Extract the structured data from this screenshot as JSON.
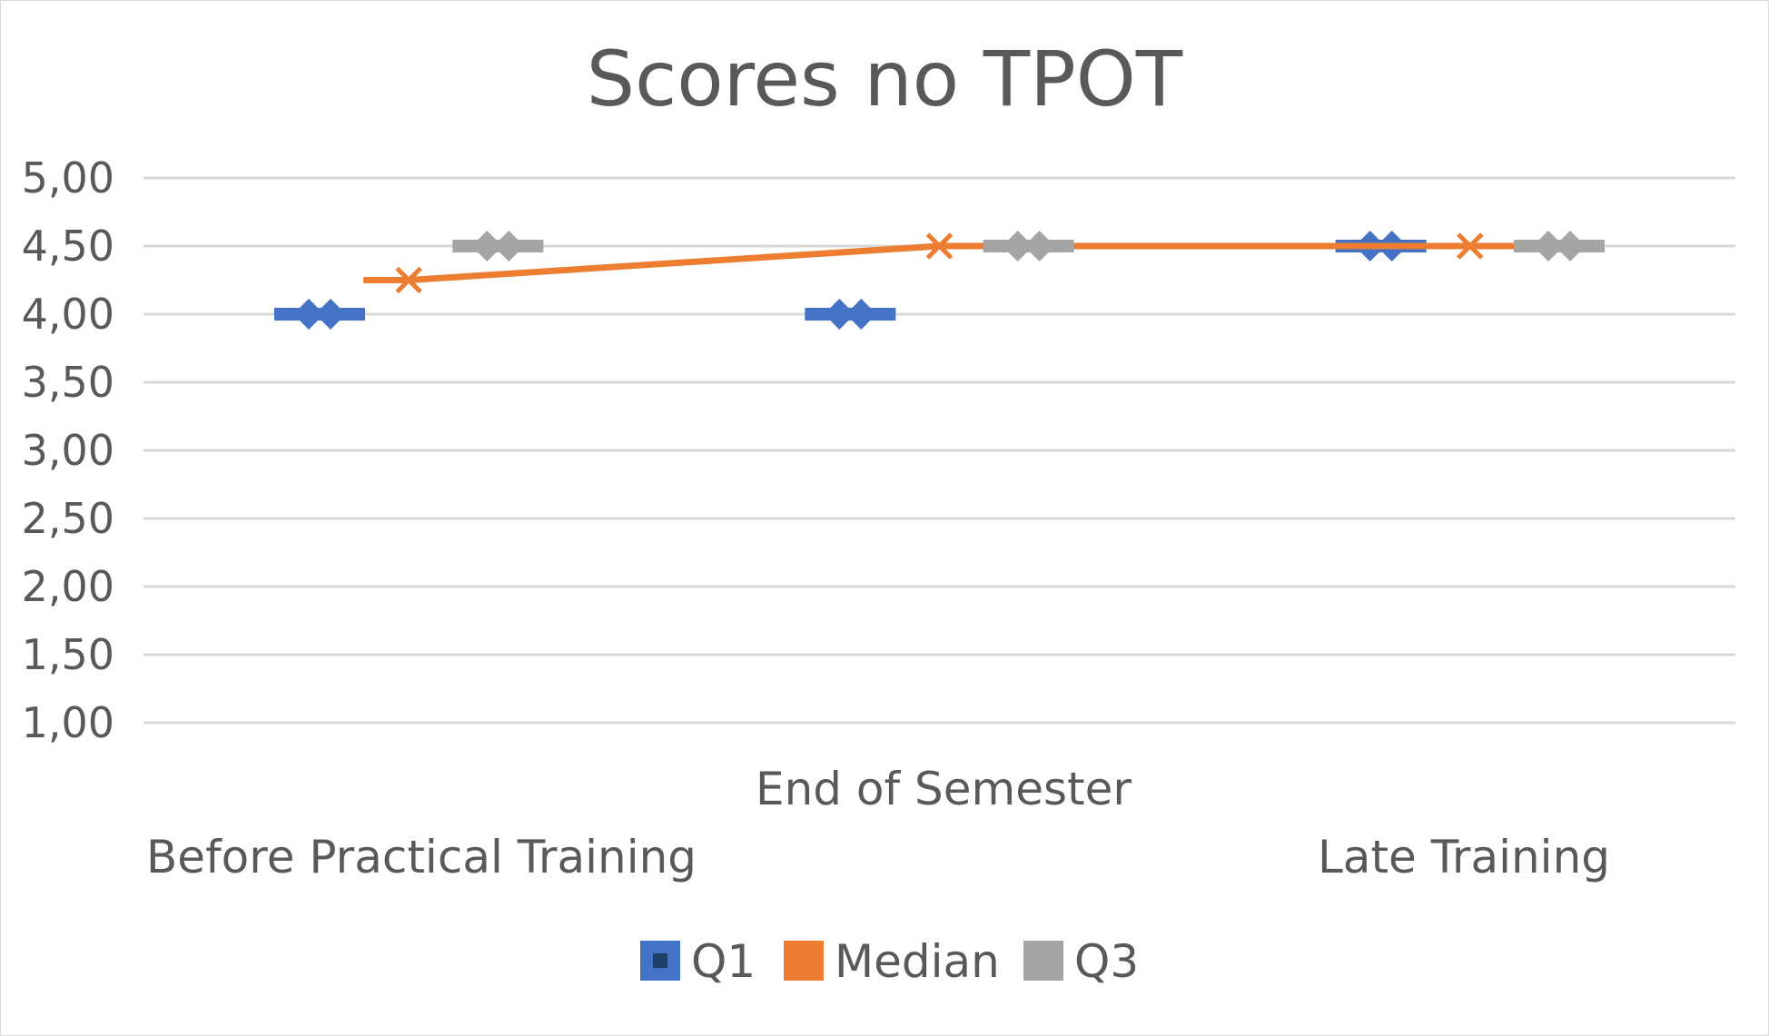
{
  "chart_data": {
    "type": "line",
    "title": "Scores no TPOT",
    "xlabel": "",
    "ylabel": "",
    "categories": [
      "Before Practical Training",
      "End of Semester",
      "Late Training"
    ],
    "ylim": [
      1.0,
      5.0
    ],
    "ytick_values": [
      1.0,
      1.5,
      2.0,
      2.5,
      3.0,
      3.5,
      4.0,
      4.5,
      5.0
    ],
    "ytick_labels": [
      "1,00",
      "1,50",
      "2,00",
      "2,50",
      "3,00",
      "3,50",
      "4,00",
      "4,50",
      "5,00"
    ],
    "grid": true,
    "legend_position": "bottom",
    "series": [
      {
        "name": "Q1",
        "values": [
          4.0,
          4.0,
          4.5
        ],
        "color": "#4472C4",
        "marker": "diamond",
        "line": false
      },
      {
        "name": "Median",
        "values": [
          4.25,
          4.5,
          4.5
        ],
        "color": "#ED7D31",
        "marker": "x",
        "line": true
      },
      {
        "name": "Q3",
        "values": [
          4.5,
          4.5,
          4.5
        ],
        "color": "#A5A5A5",
        "marker": "diamond",
        "line": false
      }
    ]
  }
}
